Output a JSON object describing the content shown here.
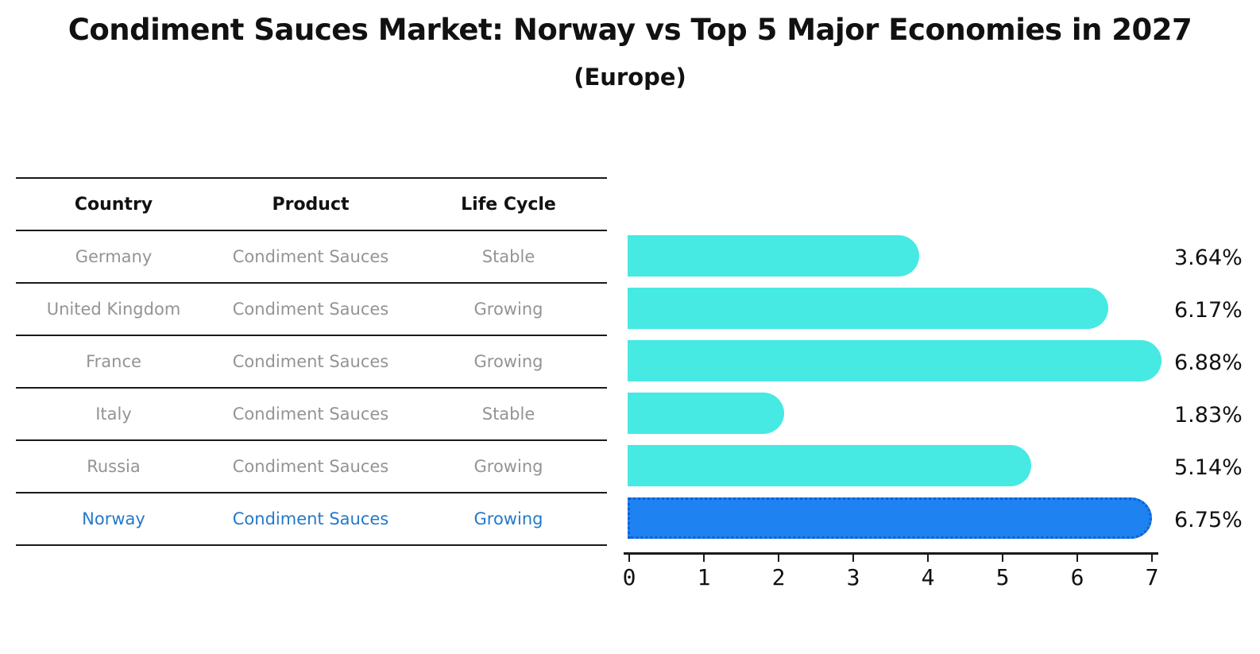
{
  "title": "Condiment Sauces Market: Norway vs Top 5 Major Economies in 2027",
  "subtitle": "(Europe)",
  "table": {
    "headers": [
      "Country",
      "Product",
      "Life Cycle"
    ],
    "rows": [
      {
        "country": "Germany",
        "product": "Condiment Sauces",
        "life_cycle": "Stable",
        "highlight": false
      },
      {
        "country": "United Kingdom",
        "product": "Condiment Sauces",
        "life_cycle": "Growing",
        "highlight": false
      },
      {
        "country": "France",
        "product": "Condiment Sauces",
        "life_cycle": "Growing",
        "highlight": false
      },
      {
        "country": "Italy",
        "product": "Condiment Sauces",
        "life_cycle": "Stable",
        "highlight": false
      },
      {
        "country": "Russia",
        "product": "Condiment Sauces",
        "life_cycle": "Growing",
        "highlight": false
      },
      {
        "country": "Norway",
        "product": "Condiment Sauces",
        "life_cycle": "Growing",
        "highlight": true
      }
    ]
  },
  "chart_data": {
    "type": "bar",
    "orientation": "horizontal",
    "title": "Condiment Sauces Market: Norway vs Top 5 Major Economies in 2027",
    "subtitle": "(Europe)",
    "categories": [
      "Germany",
      "United Kingdom",
      "France",
      "Italy",
      "Russia",
      "Norway"
    ],
    "values": [
      3.64,
      6.17,
      6.88,
      1.83,
      5.14,
      6.75
    ],
    "value_labels": [
      "3.64%",
      "6.17%",
      "6.88%",
      "1.83%",
      "5.14%",
      "6.75%"
    ],
    "xlabel": "",
    "ylabel": "",
    "xlim": [
      0,
      7
    ],
    "x_ticks": [
      0,
      1,
      2,
      3,
      4,
      5,
      6,
      7
    ],
    "grid": false,
    "legend": false,
    "bar_color": "#47E9E3",
    "highlight_color": "#1E82F0",
    "highlight_border_color": "#0F5FD6",
    "highlight_index": 5,
    "highlight_text_color": "#2579C8"
  }
}
